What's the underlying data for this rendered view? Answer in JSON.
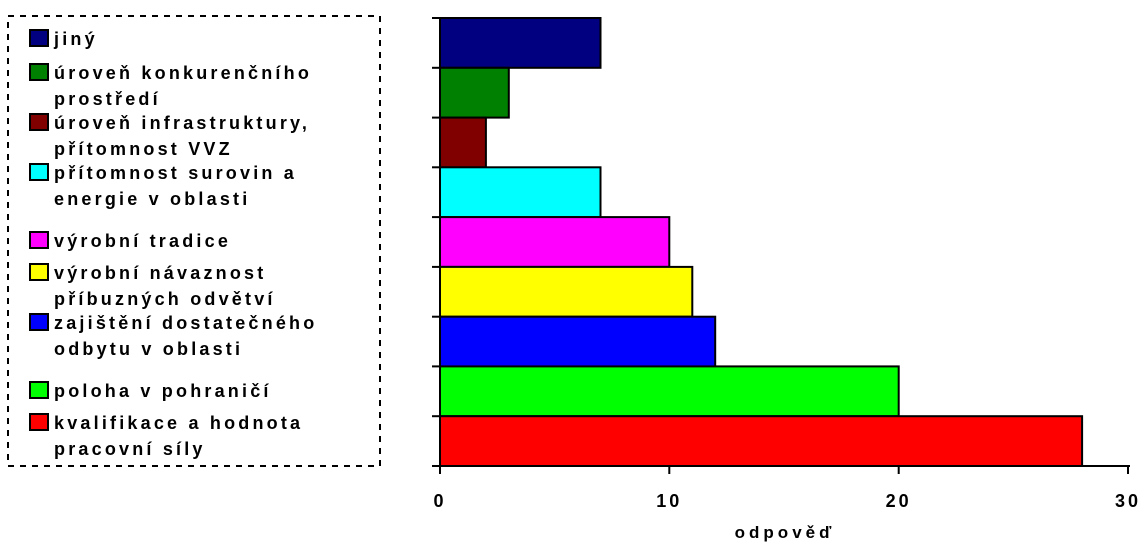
{
  "chart_data": {
    "type": "bar",
    "orientation": "horizontal",
    "xlabel": "odpověď",
    "xlim": [
      0,
      30
    ],
    "xticks": [
      "0",
      "10",
      "20",
      "30"
    ],
    "grid": false,
    "legend_placement": "left",
    "categories": [
      [
        "jiný"
      ],
      [
        "úroveň konkurenčního",
        "prostředí"
      ],
      [
        "úroveň infrastruktury,",
        "přítomnost VVZ"
      ],
      [
        "přítomnost surovin a",
        "energie v oblasti"
      ],
      [
        "výrobní tradice"
      ],
      [
        "výrobní návaznost",
        "příbuzných odvětví"
      ],
      [
        "zajištění dostatečného",
        "odbytu v oblasti"
      ],
      [
        "poloha v pohraničí"
      ],
      [
        "kvalifikace a hodnota",
        "pracovní síly"
      ]
    ],
    "values": [
      7,
      3,
      2,
      7,
      10,
      11,
      12,
      20,
      28
    ],
    "colors": [
      "#000080",
      "#008000",
      "#800000",
      "#00ffff",
      "#ff00ff",
      "#ffff00",
      "#0000ff",
      "#00ff00",
      "#ff0000"
    ]
  }
}
